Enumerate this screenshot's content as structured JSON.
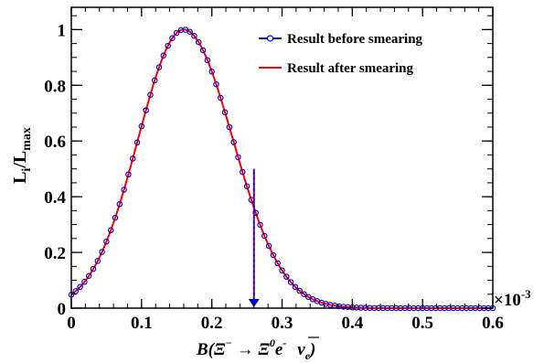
{
  "chart_data": {
    "type": "line",
    "x_multiplier_label": "×10",
    "x_multiplier_exp": "-3",
    "xlim": [
      0,
      0.6
    ],
    "ylim": [
      0,
      1.08
    ],
    "x_ticks": [
      "0",
      "0.1",
      "0.2",
      "0.3",
      "0.4",
      "0.5",
      "0.6"
    ],
    "y_ticks": [
      "0",
      "0.2",
      "0.4",
      "0.6",
      "0.8",
      "1"
    ],
    "ylabel": {
      "main": "L",
      "sub1": "i",
      "sep": "/L",
      "sub2": "max"
    },
    "xlabel": {
      "prefix": "B(Ξ",
      "sup1": "−",
      "arrow": " → ",
      "mid": "Ξ",
      "sup2": "0",
      "e": "e",
      "sup3": "-",
      "nu": "ν",
      "sub": "e",
      "suffix": ")"
    },
    "legend": [
      {
        "name": "Result before smearing",
        "color": "#0000cc",
        "marker": "open-circle"
      },
      {
        "name": "Result after smearing",
        "color": "#ff0000",
        "marker": "none"
      }
    ],
    "legend_position": "top-right",
    "peak_x": 0.16,
    "sigma_left": 0.065,
    "sigma_right": 0.07,
    "x_step": 0.00625,
    "arrow": {
      "x": 0.26,
      "y_top": 0.5,
      "y_bottom": 0.0,
      "color": "#0000cc"
    }
  }
}
